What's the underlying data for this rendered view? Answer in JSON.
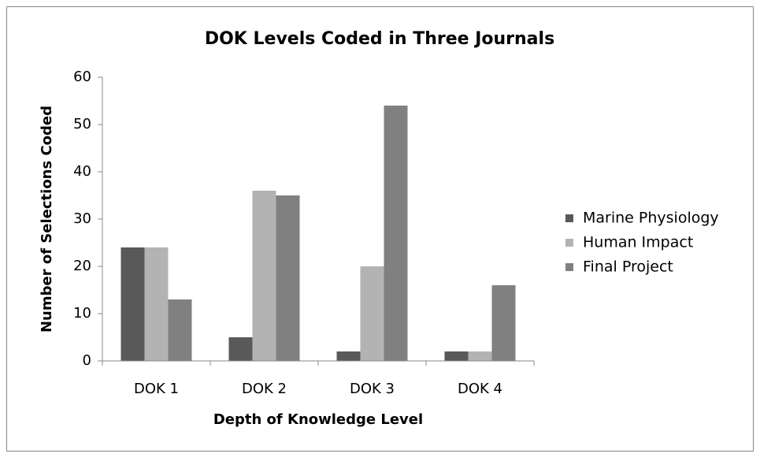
{
  "chart_data": {
    "type": "bar",
    "title": "DOK Levels Coded in Three Journals",
    "x_label": "Depth of Knowledge Level",
    "y_label": "Number of Selections Coded",
    "categories": [
      "DOK 1",
      "DOK 2",
      "DOK 3",
      "DOK 4"
    ],
    "series": [
      {
        "name": "Marine Physiology",
        "color": "#595959",
        "values": [
          24,
          5,
          2,
          2
        ]
      },
      {
        "name": "Human Impact",
        "color": "#b3b3b3",
        "values": [
          24,
          36,
          20,
          2
        ]
      },
      {
        "name": "Final Project",
        "color": "#808080",
        "values": [
          13,
          35,
          54,
          16
        ]
      }
    ],
    "ylim": [
      0,
      60
    ],
    "yticks": [
      0,
      10,
      20,
      30,
      40,
      50,
      60
    ],
    "grid": false,
    "legend": "right"
  }
}
